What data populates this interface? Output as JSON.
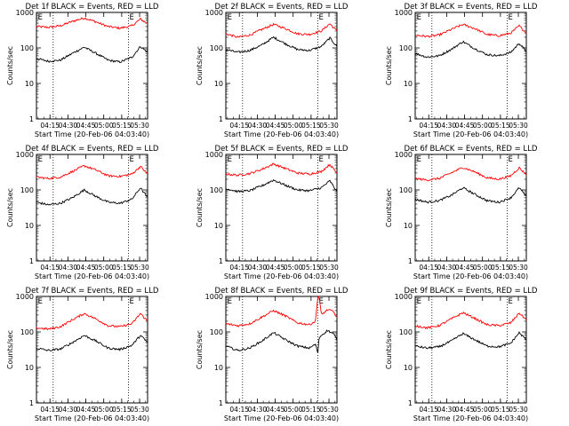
{
  "chart_data": [
    {
      "type": "line",
      "title": "Det 1f BLACK = Events, RED = LLD",
      "xlabel": "Start Time (20-Feb-06 04:03:40)",
      "ylabel": "Counts/sec",
      "yscale": "log",
      "ylim": [
        1,
        1000
      ],
      "xlim": [
        0,
        93
      ],
      "x_ticks": [
        "04:15",
        "04:30",
        "04:45",
        "05:00",
        "05:15",
        "05:30"
      ],
      "x_tick_minutes": [
        11.33,
        26.33,
        41.33,
        56.33,
        71.33,
        86.33
      ],
      "y_ticks": [
        "1",
        "10",
        "100",
        "1000"
      ],
      "y_tick_values": [
        1,
        10,
        100,
        1000
      ],
      "marker": "E",
      "marker_positions": [
        0.5,
        77
      ],
      "dotted_lines": [
        14,
        77
      ],
      "series": [
        {
          "name": "RED = LLD",
          "color": "#ff0000",
          "x": [
            0,
            10,
            20,
            30,
            40,
            50,
            60,
            70,
            80,
            87,
            93
          ],
          "values": [
            400,
            380,
            420,
            560,
            700,
            540,
            400,
            360,
            420,
            650,
            480
          ]
        },
        {
          "name": "BLACK = Events",
          "color": "#000000",
          "x": [
            0,
            10,
            20,
            30,
            40,
            50,
            60,
            70,
            80,
            87,
            93
          ],
          "values": [
            50,
            42,
            45,
            70,
            105,
            70,
            45,
            40,
            55,
            110,
            75
          ]
        }
      ]
    },
    {
      "type": "line",
      "title": "Det 2f BLACK = Events, RED = LLD",
      "xlabel": "Start Time (20-Feb-06 04:03:40)",
      "ylabel": "Counts/sec",
      "yscale": "log",
      "ylim": [
        1,
        1000
      ],
      "xlim": [
        0,
        93
      ],
      "x_ticks": [
        "04:15",
        "04:30",
        "04:45",
        "05:00",
        "05:15",
        "05:30"
      ],
      "x_tick_minutes": [
        11.33,
        26.33,
        41.33,
        56.33,
        71.33,
        86.33
      ],
      "y_ticks": [
        "1",
        "10",
        "100",
        "1000"
      ],
      "y_tick_values": [
        1,
        10,
        100,
        1000
      ],
      "marker": "E",
      "marker_positions": [
        0.5,
        77
      ],
      "dotted_lines": [
        14,
        77
      ],
      "series": [
        {
          "name": "RED = LLD",
          "color": "#ff0000",
          "x": [
            0,
            10,
            20,
            30,
            40,
            50,
            60,
            70,
            80,
            87,
            93
          ],
          "values": [
            250,
            200,
            230,
            330,
            460,
            350,
            250,
            240,
            300,
            480,
            300
          ]
        },
        {
          "name": "BLACK = Events",
          "color": "#000000",
          "x": [
            0,
            10,
            20,
            30,
            40,
            50,
            60,
            70,
            80,
            87,
            93
          ],
          "values": [
            90,
            75,
            85,
            120,
            200,
            130,
            90,
            85,
            110,
            190,
            110
          ]
        }
      ]
    },
    {
      "type": "line",
      "title": "Det 3f BLACK = Events, RED = LLD",
      "xlabel": "Start Time (20-Feb-06 04:03:40)",
      "ylabel": "Counts/sec",
      "yscale": "log",
      "ylim": [
        1,
        1000
      ],
      "xlim": [
        0,
        93
      ],
      "x_ticks": [
        "04:15",
        "04:30",
        "04:45",
        "05:00",
        "05:15",
        "05:30"
      ],
      "x_tick_minutes": [
        11.33,
        26.33,
        41.33,
        56.33,
        71.33,
        86.33
      ],
      "y_ticks": [
        "1",
        "10",
        "100",
        "1000"
      ],
      "y_tick_values": [
        1,
        10,
        100,
        1000
      ],
      "marker": "E",
      "marker_positions": [
        0.5,
        77
      ],
      "dotted_lines": [
        14,
        77
      ],
      "series": [
        {
          "name": "RED = LLD",
          "color": "#ff0000",
          "x": [
            0,
            10,
            20,
            30,
            40,
            50,
            60,
            70,
            80,
            87,
            93
          ],
          "values": [
            230,
            210,
            230,
            330,
            460,
            350,
            240,
            220,
            260,
            420,
            260
          ]
        },
        {
          "name": "BLACK = Events",
          "color": "#000000",
          "x": [
            0,
            10,
            20,
            30,
            40,
            50,
            60,
            70,
            80,
            87,
            93
          ],
          "values": [
            70,
            55,
            60,
            90,
            150,
            95,
            65,
            60,
            75,
            135,
            80
          ]
        }
      ]
    },
    {
      "type": "line",
      "title": "Det 4f BLACK = Events, RED = LLD",
      "xlabel": "Start Time (20-Feb-06 04:03:40)",
      "ylabel": "Counts/sec",
      "yscale": "log",
      "ylim": [
        1,
        1000
      ],
      "xlim": [
        0,
        93
      ],
      "x_ticks": [
        "04:15",
        "04:30",
        "04:45",
        "05:00",
        "05:15",
        "05:30"
      ],
      "x_tick_minutes": [
        11.33,
        26.33,
        41.33,
        56.33,
        71.33,
        86.33
      ],
      "y_ticks": [
        "1",
        "10",
        "100",
        "1000"
      ],
      "y_tick_values": [
        1,
        10,
        100,
        1000
      ],
      "marker": "E",
      "marker_positions": [
        0.5,
        77
      ],
      "dotted_lines": [
        14,
        77
      ],
      "series": [
        {
          "name": "RED = LLD",
          "color": "#ff0000",
          "x": [
            0,
            10,
            20,
            30,
            40,
            50,
            60,
            70,
            80,
            87,
            93
          ],
          "values": [
            230,
            210,
            230,
            330,
            480,
            360,
            250,
            240,
            280,
            460,
            280
          ]
        },
        {
          "name": "BLACK = Events",
          "color": "#000000",
          "x": [
            0,
            10,
            20,
            30,
            40,
            50,
            60,
            70,
            80,
            87,
            93
          ],
          "values": [
            45,
            38,
            42,
            60,
            100,
            65,
            45,
            42,
            55,
            115,
            60
          ]
        }
      ]
    },
    {
      "type": "line",
      "title": "Det 5f BLACK = Events, RED = LLD",
      "xlabel": "Start Time (20-Feb-06 04:03:40)",
      "ylabel": "Counts/sec",
      "yscale": "log",
      "ylim": [
        1,
        1000
      ],
      "xlim": [
        0,
        93
      ],
      "x_ticks": [
        "04:15",
        "04:30",
        "04:45",
        "05:00",
        "05:15",
        "05:30"
      ],
      "x_tick_minutes": [
        11.33,
        26.33,
        41.33,
        56.33,
        71.33,
        86.33
      ],
      "y_ticks": [
        "1",
        "10",
        "100",
        "1000"
      ],
      "y_tick_values": [
        1,
        10,
        100,
        1000
      ],
      "marker": "E",
      "marker_positions": [
        0.5,
        77
      ],
      "dotted_lines": [
        14,
        77
      ],
      "series": [
        {
          "name": "RED = LLD",
          "color": "#ff0000",
          "x": [
            0,
            10,
            20,
            30,
            40,
            50,
            60,
            70,
            80,
            87,
            93
          ],
          "values": [
            280,
            260,
            290,
            380,
            540,
            400,
            300,
            280,
            330,
            520,
            300
          ]
        },
        {
          "name": "BLACK = Events",
          "color": "#000000",
          "x": [
            0,
            10,
            20,
            30,
            40,
            50,
            60,
            70,
            80,
            87,
            93
          ],
          "values": [
            110,
            90,
            95,
            130,
            190,
            135,
            100,
            95,
            115,
            180,
            90
          ]
        }
      ]
    },
    {
      "type": "line",
      "title": "Det 6f BLACK = Events, RED = LLD",
      "xlabel": "Start Time (20-Feb-06 04:03:40)",
      "ylabel": "Counts/sec",
      "yscale": "log",
      "ylim": [
        1,
        1000
      ],
      "xlim": [
        0,
        93
      ],
      "x_ticks": [
        "04:15",
        "04:30",
        "04:45",
        "05:00",
        "05:15",
        "05:30"
      ],
      "x_tick_minutes": [
        11.33,
        26.33,
        41.33,
        56.33,
        71.33,
        86.33
      ],
      "y_ticks": [
        "1",
        "10",
        "100",
        "1000"
      ],
      "y_tick_values": [
        1,
        10,
        100,
        1000
      ],
      "marker": "E",
      "marker_positions": [
        0.5,
        77
      ],
      "dotted_lines": [
        14,
        77
      ],
      "series": [
        {
          "name": "RED = LLD",
          "color": "#ff0000",
          "x": [
            0,
            10,
            20,
            30,
            40,
            50,
            60,
            70,
            80,
            87,
            93
          ],
          "values": [
            210,
            190,
            210,
            300,
            430,
            320,
            220,
            200,
            250,
            420,
            270
          ]
        },
        {
          "name": "BLACK = Events",
          "color": "#000000",
          "x": [
            0,
            10,
            20,
            30,
            40,
            50,
            60,
            70,
            80,
            87,
            93
          ],
          "values": [
            55,
            45,
            50,
            70,
            115,
            75,
            50,
            45,
            60,
            115,
            65
          ]
        }
      ]
    },
    {
      "type": "line",
      "title": "Det 7f BLACK = Events, RED = LLD",
      "xlabel": "Start Time (20-Feb-06 04:03:40)",
      "ylabel": "Counts/sec",
      "yscale": "log",
      "ylim": [
        1,
        1000
      ],
      "xlim": [
        0,
        93
      ],
      "x_ticks": [
        "04:15",
        "04:30",
        "04:45",
        "05:00",
        "05:15",
        "05:30"
      ],
      "x_tick_minutes": [
        11.33,
        26.33,
        41.33,
        56.33,
        71.33,
        86.33
      ],
      "y_ticks": [
        "1",
        "10",
        "100",
        "1000"
      ],
      "y_tick_values": [
        1,
        10,
        100,
        1000
      ],
      "marker": "E",
      "marker_positions": [
        0.5,
        77
      ],
      "dotted_lines": [
        14,
        77
      ],
      "series": [
        {
          "name": "RED = LLD",
          "color": "#ff0000",
          "x": [
            0,
            10,
            20,
            30,
            40,
            50,
            60,
            70,
            80,
            87,
            93
          ],
          "values": [
            130,
            120,
            140,
            220,
            330,
            230,
            150,
            140,
            170,
            330,
            200
          ]
        },
        {
          "name": "BLACK = Events",
          "color": "#000000",
          "x": [
            0,
            10,
            20,
            30,
            40,
            50,
            60,
            70,
            80,
            87,
            93
          ],
          "values": [
            35,
            30,
            33,
            50,
            80,
            55,
            35,
            32,
            42,
            80,
            50
          ]
        }
      ]
    },
    {
      "type": "line",
      "title": "Det 8f BLACK = Events, RED = LLD",
      "xlabel": "Start Time (20-Feb-06 04:03:40)",
      "ylabel": "Counts/sec",
      "yscale": "log",
      "ylim": [
        1,
        1000
      ],
      "xlim": [
        0,
        93
      ],
      "x_ticks": [
        "04:15",
        "04:30",
        "04:45",
        "05:00",
        "05:15",
        "05:30"
      ],
      "x_tick_minutes": [
        11.33,
        26.33,
        41.33,
        56.33,
        71.33,
        86.33
      ],
      "y_ticks": [
        "1",
        "10",
        "100",
        "1000"
      ],
      "y_tick_values": [
        1,
        10,
        100,
        1000
      ],
      "marker": "E",
      "marker_positions": [
        0.5,
        77
      ],
      "dotted_lines": [
        14,
        77
      ],
      "series": [
        {
          "name": "RED = LLD",
          "color": "#ff0000",
          "x": [
            0,
            10,
            20,
            30,
            40,
            50,
            60,
            70,
            75,
            77,
            78,
            80,
            85,
            90,
            93
          ],
          "values": [
            170,
            150,
            170,
            260,
            400,
            280,
            180,
            160,
            200,
            1000,
            1000,
            300,
            420,
            380,
            250
          ]
        },
        {
          "name": "BLACK = Events",
          "color": "#000000",
          "x": [
            0,
            10,
            20,
            30,
            40,
            50,
            60,
            70,
            75,
            77,
            78,
            80,
            85,
            90,
            93
          ],
          "values": [
            40,
            30,
            35,
            55,
            95,
            60,
            40,
            35,
            45,
            25,
            70,
            80,
            110,
            90,
            60
          ]
        }
      ]
    },
    {
      "type": "line",
      "title": "Det 9f BLACK = Events, RED = LLD",
      "xlabel": "Start Time (20-Feb-06 04:03:40)",
      "ylabel": "Counts/sec",
      "yscale": "log",
      "ylim": [
        1,
        1000
      ],
      "xlim": [
        0,
        93
      ],
      "x_ticks": [
        "04:15",
        "04:30",
        "04:45",
        "05:00",
        "05:15",
        "05:30"
      ],
      "x_tick_minutes": [
        11.33,
        26.33,
        41.33,
        56.33,
        71.33,
        86.33
      ],
      "y_ticks": [
        "1",
        "10",
        "100",
        "1000"
      ],
      "y_tick_values": [
        1,
        10,
        100,
        1000
      ],
      "marker": "E",
      "marker_positions": [
        0.5,
        77
      ],
      "dotted_lines": [
        14,
        77
      ],
      "series": [
        {
          "name": "RED = LLD",
          "color": "#ff0000",
          "x": [
            0,
            10,
            20,
            30,
            40,
            50,
            60,
            70,
            80,
            87,
            93
          ],
          "values": [
            150,
            130,
            150,
            230,
            350,
            240,
            160,
            150,
            180,
            340,
            220
          ]
        },
        {
          "name": "BLACK = Events",
          "color": "#000000",
          "x": [
            0,
            10,
            20,
            30,
            40,
            50,
            60,
            70,
            80,
            87,
            93
          ],
          "values": [
            40,
            35,
            38,
            55,
            90,
            60,
            40,
            38,
            48,
            95,
            60
          ]
        }
      ]
    }
  ]
}
